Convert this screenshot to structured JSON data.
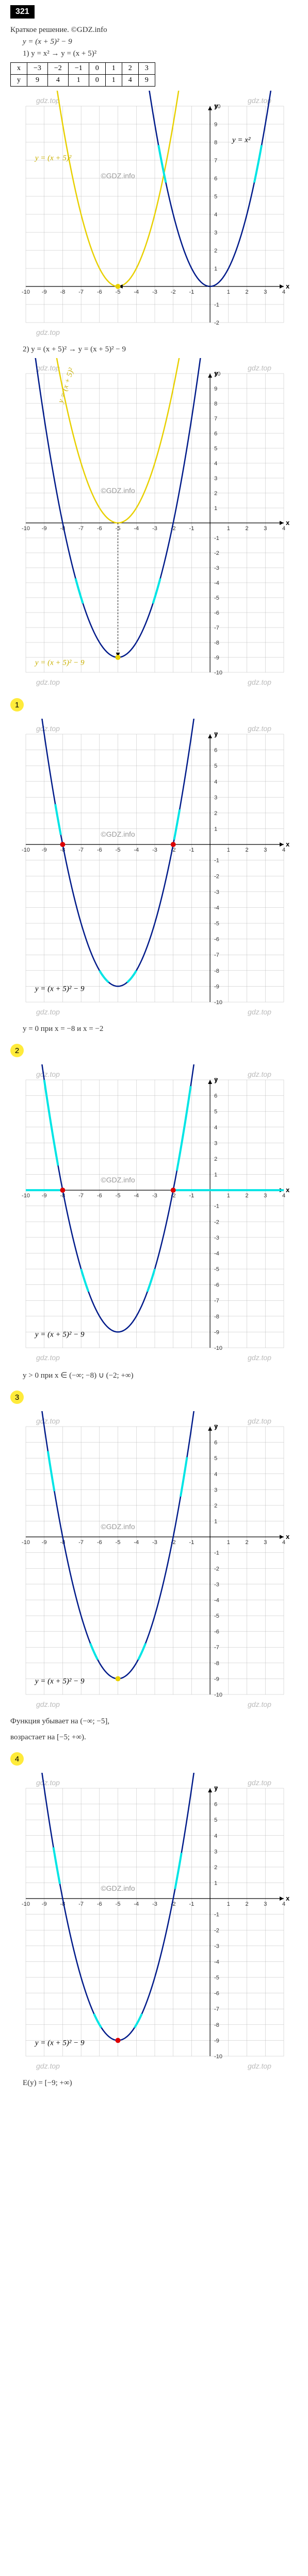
{
  "badge": "321",
  "header": "Краткое решение. ©GDZ.info",
  "eq_main": "y = (x + 5)² − 9",
  "step1": "1) y = x² → y = (x + 5)²",
  "table": {
    "cols": [
      "x",
      "−3",
      "−2",
      "−1",
      "0",
      "1",
      "2",
      "3"
    ],
    "rows": [
      [
        "y",
        "9",
        "4",
        "1",
        "0",
        "1",
        "4",
        "9"
      ]
    ]
  },
  "chart1": {
    "xlim": [
      -10,
      4
    ],
    "ylim": [
      -2,
      10
    ],
    "curve_main_label": "y = x²",
    "curve_yellow_label": "y = (x + 5)²",
    "parabola_main_vertex": [
      0,
      0
    ],
    "parabola_yellow_vertex": [
      -5,
      0
    ],
    "arrow_from": [
      0,
      0
    ],
    "arrow_to": [
      -5,
      0
    ],
    "colors": {
      "main": "#001b8a",
      "yellow": "#e8d000",
      "grid": "#bbb"
    },
    "watermarks": [
      "gdz.top",
      "gdz.top",
      "gdz.top"
    ],
    "center_wm": "©GDZ.info"
  },
  "step2": "2) y = (x + 5)² → y = (x + 5)² − 9",
  "chart2": {
    "xlim": [
      -10,
      4
    ],
    "ylim": [
      -10,
      10
    ],
    "curve_yellow_label": "y = (x + 5)²",
    "curve_main_label_bottom": "y = (x + 5)² − 9",
    "parabola_yellow_vertex": [
      -5,
      0
    ],
    "parabola_main_vertex": [
      -5,
      -9
    ],
    "arrow_from": [
      -5,
      0
    ],
    "arrow_to": [
      -5,
      -9
    ],
    "colors": {
      "main": "#001b8a",
      "yellow": "#e8d000"
    },
    "watermarks": [
      "gdz.top",
      "gdz.top",
      "gdz.top",
      "gdz.top"
    ],
    "center_wm": "©GDZ.info"
  },
  "q1": {
    "num": "1",
    "chart": {
      "xlim": [
        -10,
        4
      ],
      "ylim": [
        -10,
        7
      ],
      "vertex": [
        -5,
        -9
      ],
      "roots": [
        -8,
        -2
      ],
      "eq": "y = (x + 5)² − 9"
    },
    "result": "y = 0 при x = −8 и x = −2"
  },
  "q2": {
    "num": "2",
    "chart": {
      "xlim": [
        -10,
        4
      ],
      "ylim": [
        -10,
        7
      ],
      "vertex": [
        -5,
        -9
      ],
      "roots": [
        -8,
        -2
      ],
      "eq": "y = (x + 5)² − 9"
    },
    "result": "y > 0 при x ∈ (−∞; −8) ∪ (−2; +∞)"
  },
  "q3": {
    "num": "3",
    "chart": {
      "xlim": [
        -10,
        4
      ],
      "ylim": [
        -10,
        7
      ],
      "vertex": [
        -5,
        -9
      ],
      "eq": "y = (x + 5)² − 9"
    },
    "result_a": "Функция убывает на (−∞; −5],",
    "result_b": "возрастает на [−5; +∞)."
  },
  "q4": {
    "num": "4",
    "chart": {
      "xlim": [
        -10,
        4
      ],
      "ylim": [
        -10,
        7
      ],
      "vertex": [
        -5,
        -9
      ],
      "eq": "y = (x + 5)² − 9"
    },
    "result": "E(y) = [−9; +∞)"
  },
  "wm_text": "gdz.top",
  "wm_center": "©GDZ.info"
}
